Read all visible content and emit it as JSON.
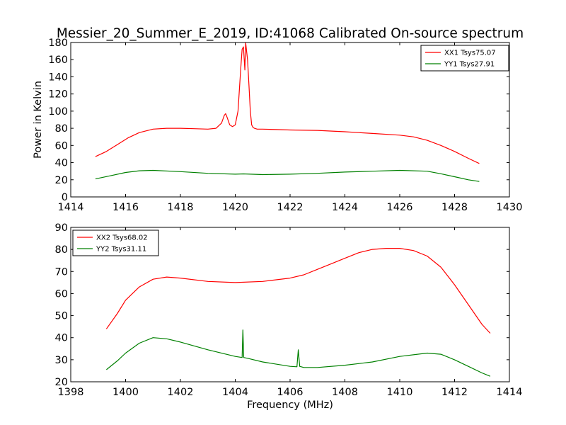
{
  "title": "Messier_20_Summer_E_2019, ID:41068 Calibrated On-source spectrum",
  "colors": {
    "red": "#ff0000",
    "green": "#008000",
    "axis": "#000000"
  },
  "chart_data": [
    {
      "type": "line",
      "xlabel": "",
      "ylabel": "Power in Kelvin",
      "xlim": [
        1414,
        1430
      ],
      "ylim": [
        0,
        180
      ],
      "xticks": [
        "1414",
        "1416",
        "1418",
        "1420",
        "1422",
        "1424",
        "1426",
        "1428",
        "1430"
      ],
      "yticks": [
        "0",
        "20",
        "40",
        "60",
        "80",
        "100",
        "120",
        "140",
        "160",
        "180"
      ],
      "legend": "top-right",
      "grid": false,
      "series": [
        {
          "name": "XX1 Tsys75.07",
          "color": "#ff0000",
          "x": [
            1414.9,
            1415.3,
            1415.7,
            1416.1,
            1416.5,
            1417.0,
            1417.5,
            1418.0,
            1418.5,
            1419.0,
            1419.3,
            1419.5,
            1419.6,
            1419.65,
            1419.7,
            1419.8,
            1419.9,
            1420.0,
            1420.1,
            1420.2,
            1420.25,
            1420.3,
            1420.35,
            1420.38,
            1420.42,
            1420.45,
            1420.5,
            1420.55,
            1420.6,
            1420.65,
            1420.7,
            1420.8,
            1421.0,
            1421.5,
            1422.0,
            1423.0,
            1424.0,
            1425.0,
            1426.0,
            1426.5,
            1427.0,
            1427.5,
            1428.0,
            1428.5,
            1428.9
          ],
          "y": [
            47,
            53,
            61,
            69,
            75,
            79,
            80,
            80,
            79.5,
            79,
            80,
            86,
            95,
            97,
            93,
            84,
            82,
            84,
            100,
            150,
            172,
            175,
            148,
            180,
            168,
            160,
            130,
            100,
            84,
            81,
            80,
            79,
            79,
            78.5,
            78,
            77.5,
            76,
            74,
            72,
            70,
            66,
            60,
            53,
            45,
            39
          ]
        },
        {
          "name": "YY1 Tsys27.91",
          "color": "#008000",
          "x": [
            1414.9,
            1415.5,
            1416.0,
            1416.5,
            1417.0,
            1418.0,
            1419.0,
            1420.0,
            1420.3,
            1421.0,
            1422.0,
            1423.0,
            1424.0,
            1425.0,
            1426.0,
            1427.0,
            1427.5,
            1428.0,
            1428.5,
            1428.9
          ],
          "y": [
            21,
            25,
            28.5,
            30.5,
            31,
            29.5,
            27.5,
            26.5,
            26.8,
            26,
            26.5,
            27.5,
            29,
            30,
            31,
            30,
            27,
            23.5,
            20,
            18
          ]
        }
      ]
    },
    {
      "type": "line",
      "xlabel": "Frequency (MHz)",
      "ylabel": "",
      "xlim": [
        1398,
        1414
      ],
      "ylim": [
        20,
        90
      ],
      "xticks": [
        "1398",
        "1400",
        "1402",
        "1404",
        "1406",
        "1408",
        "1410",
        "1412",
        "1414"
      ],
      "yticks": [
        "20",
        "30",
        "40",
        "50",
        "60",
        "70",
        "80",
        "90"
      ],
      "legend": "top-left",
      "grid": false,
      "series": [
        {
          "name": "XX2 Tsys68.02",
          "color": "#ff0000",
          "x": [
            1399.3,
            1399.7,
            1400.0,
            1400.5,
            1401.0,
            1401.5,
            1402.0,
            1403.0,
            1404.0,
            1405.0,
            1406.0,
            1406.5,
            1407.0,
            1407.5,
            1408.0,
            1408.5,
            1409.0,
            1409.5,
            1410.0,
            1410.5,
            1411.0,
            1411.5,
            1412.0,
            1412.5,
            1413.0,
            1413.3
          ],
          "y": [
            44,
            51,
            57,
            63,
            66.5,
            67.5,
            67,
            65.5,
            65,
            65.5,
            67,
            68.5,
            71,
            73.5,
            76,
            78.5,
            80,
            80.5,
            80.5,
            79.5,
            77,
            72,
            64,
            55,
            46,
            42
          ]
        },
        {
          "name": "YY2 Tsys31.11",
          "color": "#008000",
          "x": [
            1399.3,
            1399.7,
            1400.0,
            1400.5,
            1401.0,
            1401.5,
            1402.0,
            1403.0,
            1404.0,
            1404.25,
            1404.28,
            1404.31,
            1404.5,
            1405.0,
            1406.0,
            1406.25,
            1406.3,
            1406.35,
            1406.5,
            1407.0,
            1408.0,
            1409.0,
            1410.0,
            1411.0,
            1411.5,
            1412.0,
            1412.5,
            1413.0,
            1413.3
          ],
          "y": [
            25.5,
            29.5,
            33,
            37.5,
            40,
            39.5,
            38,
            34.5,
            31.5,
            31,
            43.5,
            31,
            30.5,
            29,
            27,
            26.8,
            34.5,
            27,
            26.5,
            26.5,
            27.5,
            29,
            31.5,
            33,
            32.5,
            30,
            27,
            24,
            22.5
          ]
        }
      ]
    }
  ]
}
